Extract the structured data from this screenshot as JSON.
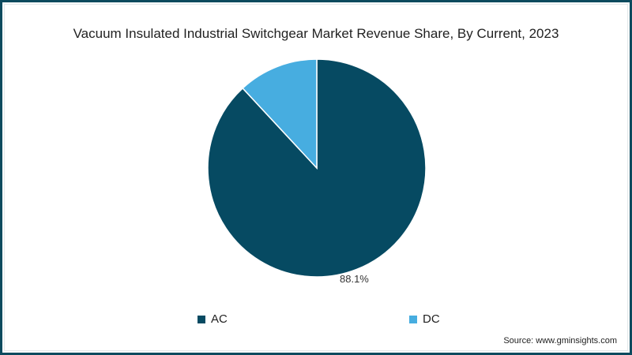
{
  "chart_data": {
    "type": "pie",
    "title": "Vacuum Insulated Industrial Switchgear Market Revenue Share, By Current, 2023",
    "categories": [
      "AC",
      "DC"
    ],
    "values": [
      88.1,
      11.9
    ],
    "colors": [
      "#064a62",
      "#47ade0"
    ],
    "data_labels": [
      "88.1%",
      ""
    ],
    "legend_position": "bottom"
  },
  "title": "Vacuum Insulated Industrial Switchgear Market Revenue Share, By Current, 2023",
  "label_ac": "88.1%",
  "legend": [
    {
      "label": "AC",
      "color": "#064a62"
    },
    {
      "label": "DC",
      "color": "#47ade0"
    }
  ],
  "source": "Source: www.gminsights.com"
}
